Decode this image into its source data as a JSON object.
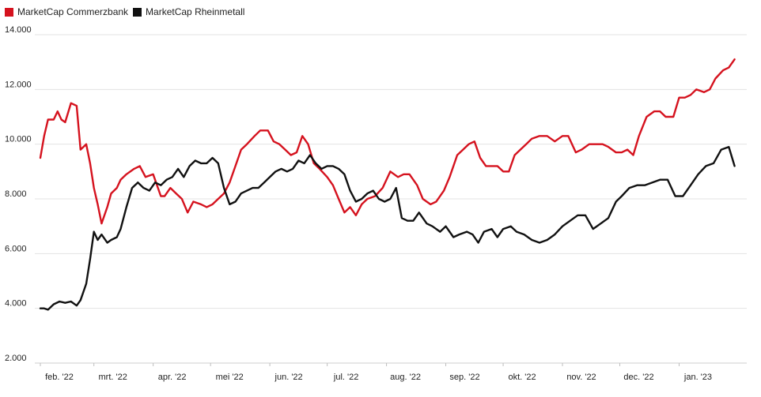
{
  "chart_data": {
    "type": "line",
    "title": "",
    "xlabel": "",
    "ylabel": "",
    "ylim": [
      2000,
      14000
    ],
    "y_ticks": [
      2000,
      4000,
      6000,
      8000,
      10000,
      12000,
      14000
    ],
    "y_tick_labels": [
      "2.000",
      "4.000",
      "6.000",
      "8.000",
      "10.000",
      "12.000",
      "14.000"
    ],
    "x_range": [
      "2022-02-01",
      "2023-01-31"
    ],
    "x_tick_dates": [
      "2022-02-01",
      "2022-03-01",
      "2022-04-01",
      "2022-05-01",
      "2022-06-01",
      "2022-07-01",
      "2022-08-01",
      "2022-09-01",
      "2022-10-01",
      "2022-11-01",
      "2022-12-01",
      "2023-01-01"
    ],
    "x_tick_labels": [
      "feb. '22",
      "mrt. '22",
      "apr. '22",
      "mei '22",
      "jun. '22",
      "jul. '22",
      "aug. '22",
      "sep. '22",
      "okt. '22",
      "nov. '22",
      "dec. '22",
      "jan. '23"
    ],
    "grid": "horizontal",
    "legend_position": "top-left",
    "series": [
      {
        "name": "MarketCap Commerzbank",
        "color": "#d5121e",
        "x": [
          "2022-02-01",
          "2022-02-03",
          "2022-02-05",
          "2022-02-08",
          "2022-02-10",
          "2022-02-12",
          "2022-02-14",
          "2022-02-17",
          "2022-02-20",
          "2022-02-22",
          "2022-02-25",
          "2022-02-27",
          "2022-03-01",
          "2022-03-03",
          "2022-03-05",
          "2022-03-08",
          "2022-03-10",
          "2022-03-13",
          "2022-03-15",
          "2022-03-18",
          "2022-03-22",
          "2022-03-25",
          "2022-03-28",
          "2022-04-01",
          "2022-04-05",
          "2022-04-07",
          "2022-04-10",
          "2022-04-13",
          "2022-04-16",
          "2022-04-19",
          "2022-04-22",
          "2022-04-26",
          "2022-04-29",
          "2022-05-02",
          "2022-05-05",
          "2022-05-08",
          "2022-05-11",
          "2022-05-14",
          "2022-05-17",
          "2022-05-20",
          "2022-05-24",
          "2022-05-27",
          "2022-05-31",
          "2022-06-03",
          "2022-06-06",
          "2022-06-09",
          "2022-06-12",
          "2022-06-15",
          "2022-06-18",
          "2022-06-21",
          "2022-06-24",
          "2022-06-27",
          "2022-07-01",
          "2022-07-04",
          "2022-07-07",
          "2022-07-10",
          "2022-07-13",
          "2022-07-16",
          "2022-07-19",
          "2022-07-22",
          "2022-07-26",
          "2022-07-30",
          "2022-08-03",
          "2022-08-07",
          "2022-08-10",
          "2022-08-13",
          "2022-08-17",
          "2022-08-20",
          "2022-08-24",
          "2022-08-27",
          "2022-08-31",
          "2022-09-03",
          "2022-09-07",
          "2022-09-10",
          "2022-09-13",
          "2022-09-16",
          "2022-09-19",
          "2022-09-22",
          "2022-09-25",
          "2022-09-28",
          "2022-10-01",
          "2022-10-04",
          "2022-10-07",
          "2022-10-10",
          "2022-10-13",
          "2022-10-16",
          "2022-10-20",
          "2022-10-24",
          "2022-10-28",
          "2022-11-01",
          "2022-11-04",
          "2022-11-08",
          "2022-11-11",
          "2022-11-15",
          "2022-11-18",
          "2022-11-22",
          "2022-11-25",
          "2022-11-29",
          "2022-12-02",
          "2022-12-05",
          "2022-12-08",
          "2022-12-11",
          "2022-12-15",
          "2022-12-19",
          "2022-12-22",
          "2022-12-25",
          "2022-12-29",
          "2023-01-01",
          "2023-01-04",
          "2023-01-07",
          "2023-01-10",
          "2023-01-14",
          "2023-01-17",
          "2023-01-20",
          "2023-01-24",
          "2023-01-27",
          "2023-01-30"
        ],
        "values": [
          9500,
          10300,
          10900,
          10900,
          11200,
          10900,
          10800,
          11500,
          11400,
          9800,
          10000,
          9300,
          8400,
          7800,
          7100,
          7700,
          8200,
          8400,
          8700,
          8900,
          9100,
          9200,
          8800,
          8900,
          8100,
          8100,
          8400,
          8200,
          8000,
          7500,
          7900,
          7800,
          7700,
          7800,
          8000,
          8200,
          8600,
          9200,
          9800,
          10000,
          10300,
          10500,
          10500,
          10100,
          10000,
          9800,
          9600,
          9700,
          10300,
          10000,
          9300,
          9100,
          8800,
          8500,
          8000,
          7500,
          7700,
          7400,
          7800,
          8000,
          8100,
          8400,
          9000,
          8800,
          8900,
          8900,
          8500,
          8000,
          7800,
          7900,
          8300,
          8800,
          9600,
          9800,
          10000,
          10100,
          9500,
          9200,
          9200,
          9200,
          9000,
          9000,
          9600,
          9800,
          10000,
          10200,
          10300,
          10300,
          10100,
          10300,
          10300,
          9700,
          9800,
          10000,
          10000,
          10000,
          9900,
          9700,
          9700,
          9800,
          9600,
          10300,
          11000,
          11200,
          11200,
          11000,
          11000,
          11700,
          11700,
          11800,
          12000,
          11900,
          12000,
          12400,
          12700,
          12800,
          13100
        ]
      },
      {
        "name": "MarketCap Rheinmetall",
        "color": "#111111",
        "x": [
          "2022-02-01",
          "2022-02-03",
          "2022-02-05",
          "2022-02-08",
          "2022-02-11",
          "2022-02-14",
          "2022-02-17",
          "2022-02-20",
          "2022-02-22",
          "2022-02-25",
          "2022-02-27",
          "2022-03-01",
          "2022-03-03",
          "2022-03-05",
          "2022-03-08",
          "2022-03-10",
          "2022-03-13",
          "2022-03-15",
          "2022-03-18",
          "2022-03-21",
          "2022-03-24",
          "2022-03-27",
          "2022-03-30",
          "2022-04-02",
          "2022-04-05",
          "2022-04-08",
          "2022-04-11",
          "2022-04-14",
          "2022-04-17",
          "2022-04-20",
          "2022-04-23",
          "2022-04-26",
          "2022-04-29",
          "2022-05-02",
          "2022-05-05",
          "2022-05-08",
          "2022-05-11",
          "2022-05-14",
          "2022-05-17",
          "2022-05-20",
          "2022-05-23",
          "2022-05-26",
          "2022-05-29",
          "2022-06-01",
          "2022-06-04",
          "2022-06-07",
          "2022-06-10",
          "2022-06-13",
          "2022-06-16",
          "2022-06-19",
          "2022-06-22",
          "2022-06-25",
          "2022-06-28",
          "2022-07-01",
          "2022-07-04",
          "2022-07-07",
          "2022-07-10",
          "2022-07-13",
          "2022-07-16",
          "2022-07-19",
          "2022-07-22",
          "2022-07-25",
          "2022-07-28",
          "2022-07-31",
          "2022-08-03",
          "2022-08-06",
          "2022-08-09",
          "2022-08-12",
          "2022-08-15",
          "2022-08-18",
          "2022-08-22",
          "2022-08-25",
          "2022-08-29",
          "2022-09-01",
          "2022-09-05",
          "2022-09-08",
          "2022-09-12",
          "2022-09-15",
          "2022-09-18",
          "2022-09-21",
          "2022-09-25",
          "2022-09-28",
          "2022-10-01",
          "2022-10-05",
          "2022-10-08",
          "2022-10-12",
          "2022-10-16",
          "2022-10-20",
          "2022-10-24",
          "2022-10-28",
          "2022-11-01",
          "2022-11-05",
          "2022-11-09",
          "2022-11-13",
          "2022-11-17",
          "2022-11-21",
          "2022-11-25",
          "2022-11-29",
          "2022-12-02",
          "2022-12-06",
          "2022-12-10",
          "2022-12-14",
          "2022-12-18",
          "2022-12-22",
          "2022-12-26",
          "2022-12-30",
          "2023-01-03",
          "2023-01-07",
          "2023-01-11",
          "2023-01-15",
          "2023-01-19",
          "2023-01-23",
          "2023-01-27",
          "2023-01-30"
        ],
        "values": [
          4000,
          4000,
          3950,
          4150,
          4250,
          4200,
          4250,
          4100,
          4300,
          4900,
          5800,
          6800,
          6500,
          6700,
          6400,
          6500,
          6600,
          6900,
          7700,
          8400,
          8600,
          8400,
          8300,
          8600,
          8500,
          8700,
          8800,
          9100,
          8800,
          9200,
          9400,
          9300,
          9300,
          9500,
          9300,
          8400,
          7800,
          7900,
          8200,
          8300,
          8400,
          8400,
          8600,
          8800,
          9000,
          9100,
          9000,
          9100,
          9400,
          9300,
          9600,
          9300,
          9100,
          9200,
          9200,
          9100,
          8900,
          8300,
          7900,
          8000,
          8200,
          8300,
          8000,
          7900,
          8000,
          8400,
          7300,
          7200,
          7200,
          7500,
          7100,
          7000,
          6800,
          7000,
          6600,
          6700,
          6800,
          6700,
          6400,
          6800,
          6900,
          6600,
          6900,
          7000,
          6800,
          6700,
          6500,
          6400,
          6500,
          6700,
          7000,
          7200,
          7400,
          7400,
          6900,
          7100,
          7300,
          7900,
          8100,
          8400,
          8500,
          8500,
          8600,
          8700,
          8700,
          8100,
          8100,
          8500,
          8900,
          9200,
          9300,
          9800,
          9900,
          9200
        ]
      }
    ]
  }
}
